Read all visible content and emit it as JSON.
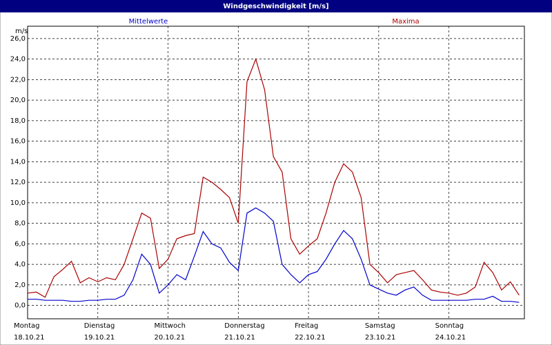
{
  "chart_data": {
    "type": "line",
    "title": "Windgeschwindigkeit [m/s]",
    "y_label": "m/s",
    "x": [
      0,
      3,
      6,
      9,
      12,
      15,
      18,
      21,
      24,
      27,
      30,
      33,
      36,
      39,
      42,
      45,
      48,
      51,
      54,
      57,
      60,
      63,
      66,
      69,
      72,
      75,
      78,
      81,
      84,
      87,
      90,
      93,
      96,
      99,
      102,
      105,
      108,
      111,
      114,
      117,
      120,
      123,
      126,
      129,
      132,
      135,
      138,
      141,
      144,
      147,
      150,
      153,
      156,
      159,
      162,
      165,
      168
    ],
    "xlim": [
      0,
      169.8
    ],
    "xticks": [
      {
        "value": 0,
        "label": "Montag",
        "date": "18.10.21"
      },
      {
        "value": 24,
        "label": "Dienstag",
        "date": "19.10.21"
      },
      {
        "value": 48,
        "label": "Mittwoch",
        "date": "20.10.21"
      },
      {
        "value": 72,
        "label": "Donnerstag",
        "date": "21.10.21"
      },
      {
        "value": 96,
        "label": "Freitag",
        "date": "22.10.21"
      },
      {
        "value": 120,
        "label": "Samstag",
        "date": "23.10.21"
      },
      {
        "value": 144,
        "label": "Sonntag",
        "date": "24.10.21"
      }
    ],
    "ylim": [
      -1.3,
      27.2
    ],
    "yticks": [
      {
        "value": 0,
        "label": "0,0"
      },
      {
        "value": 2,
        "label": "2,0"
      },
      {
        "value": 4,
        "label": "4,0"
      },
      {
        "value": 6,
        "label": "6,0"
      },
      {
        "value": 8,
        "label": "8,0"
      },
      {
        "value": 10,
        "label": "10,0"
      },
      {
        "value": 12,
        "label": "12,0"
      },
      {
        "value": 14,
        "label": "14,0"
      },
      {
        "value": 16,
        "label": "16,0"
      },
      {
        "value": 18,
        "label": "18,0"
      },
      {
        "value": 20,
        "label": "20,0"
      },
      {
        "value": 22,
        "label": "22,0"
      },
      {
        "value": 24,
        "label": "24,0"
      },
      {
        "value": 26,
        "label": "26,0"
      }
    ],
    "grid": true,
    "series": [
      {
        "name": "Mittelwerte",
        "color": "#0000cc",
        "values": [
          0.6,
          0.6,
          0.5,
          0.5,
          0.5,
          0.4,
          0.4,
          0.5,
          0.5,
          0.6,
          0.6,
          1.0,
          2.5,
          5.0,
          4.0,
          1.2,
          2.0,
          3.0,
          2.5,
          4.8,
          7.2,
          6.0,
          5.6,
          4.2,
          3.4,
          9.0,
          9.5,
          9.0,
          8.2,
          4.0,
          3.0,
          2.2,
          3.0,
          3.3,
          4.5,
          6.0,
          7.3,
          6.5,
          4.5,
          2.0,
          1.6,
          1.2,
          1.0,
          1.5,
          1.8,
          1.0,
          0.5,
          0.5,
          0.5,
          0.5,
          0.5,
          0.6,
          0.6,
          0.9,
          0.4,
          0.4,
          0.3
        ]
      },
      {
        "name": "Maxima",
        "color": "#aa0000",
        "values": [
          1.2,
          1.3,
          0.8,
          2.8,
          3.5,
          4.3,
          2.2,
          2.7,
          2.3,
          2.7,
          2.5,
          4.0,
          6.5,
          9.0,
          8.5,
          3.6,
          4.5,
          6.5,
          6.8,
          7.0,
          12.5,
          12.0,
          11.3,
          10.5,
          8.0,
          21.8,
          24.0,
          21.0,
          14.5,
          13.0,
          6.5,
          5.0,
          5.8,
          6.5,
          9.0,
          12.0,
          13.8,
          13.0,
          10.5,
          4.0,
          3.2,
          2.2,
          3.0,
          3.2,
          3.4,
          2.5,
          1.5,
          1.3,
          1.2,
          1.0,
          1.2,
          1.8,
          4.2,
          3.2,
          1.5,
          2.3,
          1.0
        ]
      }
    ]
  }
}
